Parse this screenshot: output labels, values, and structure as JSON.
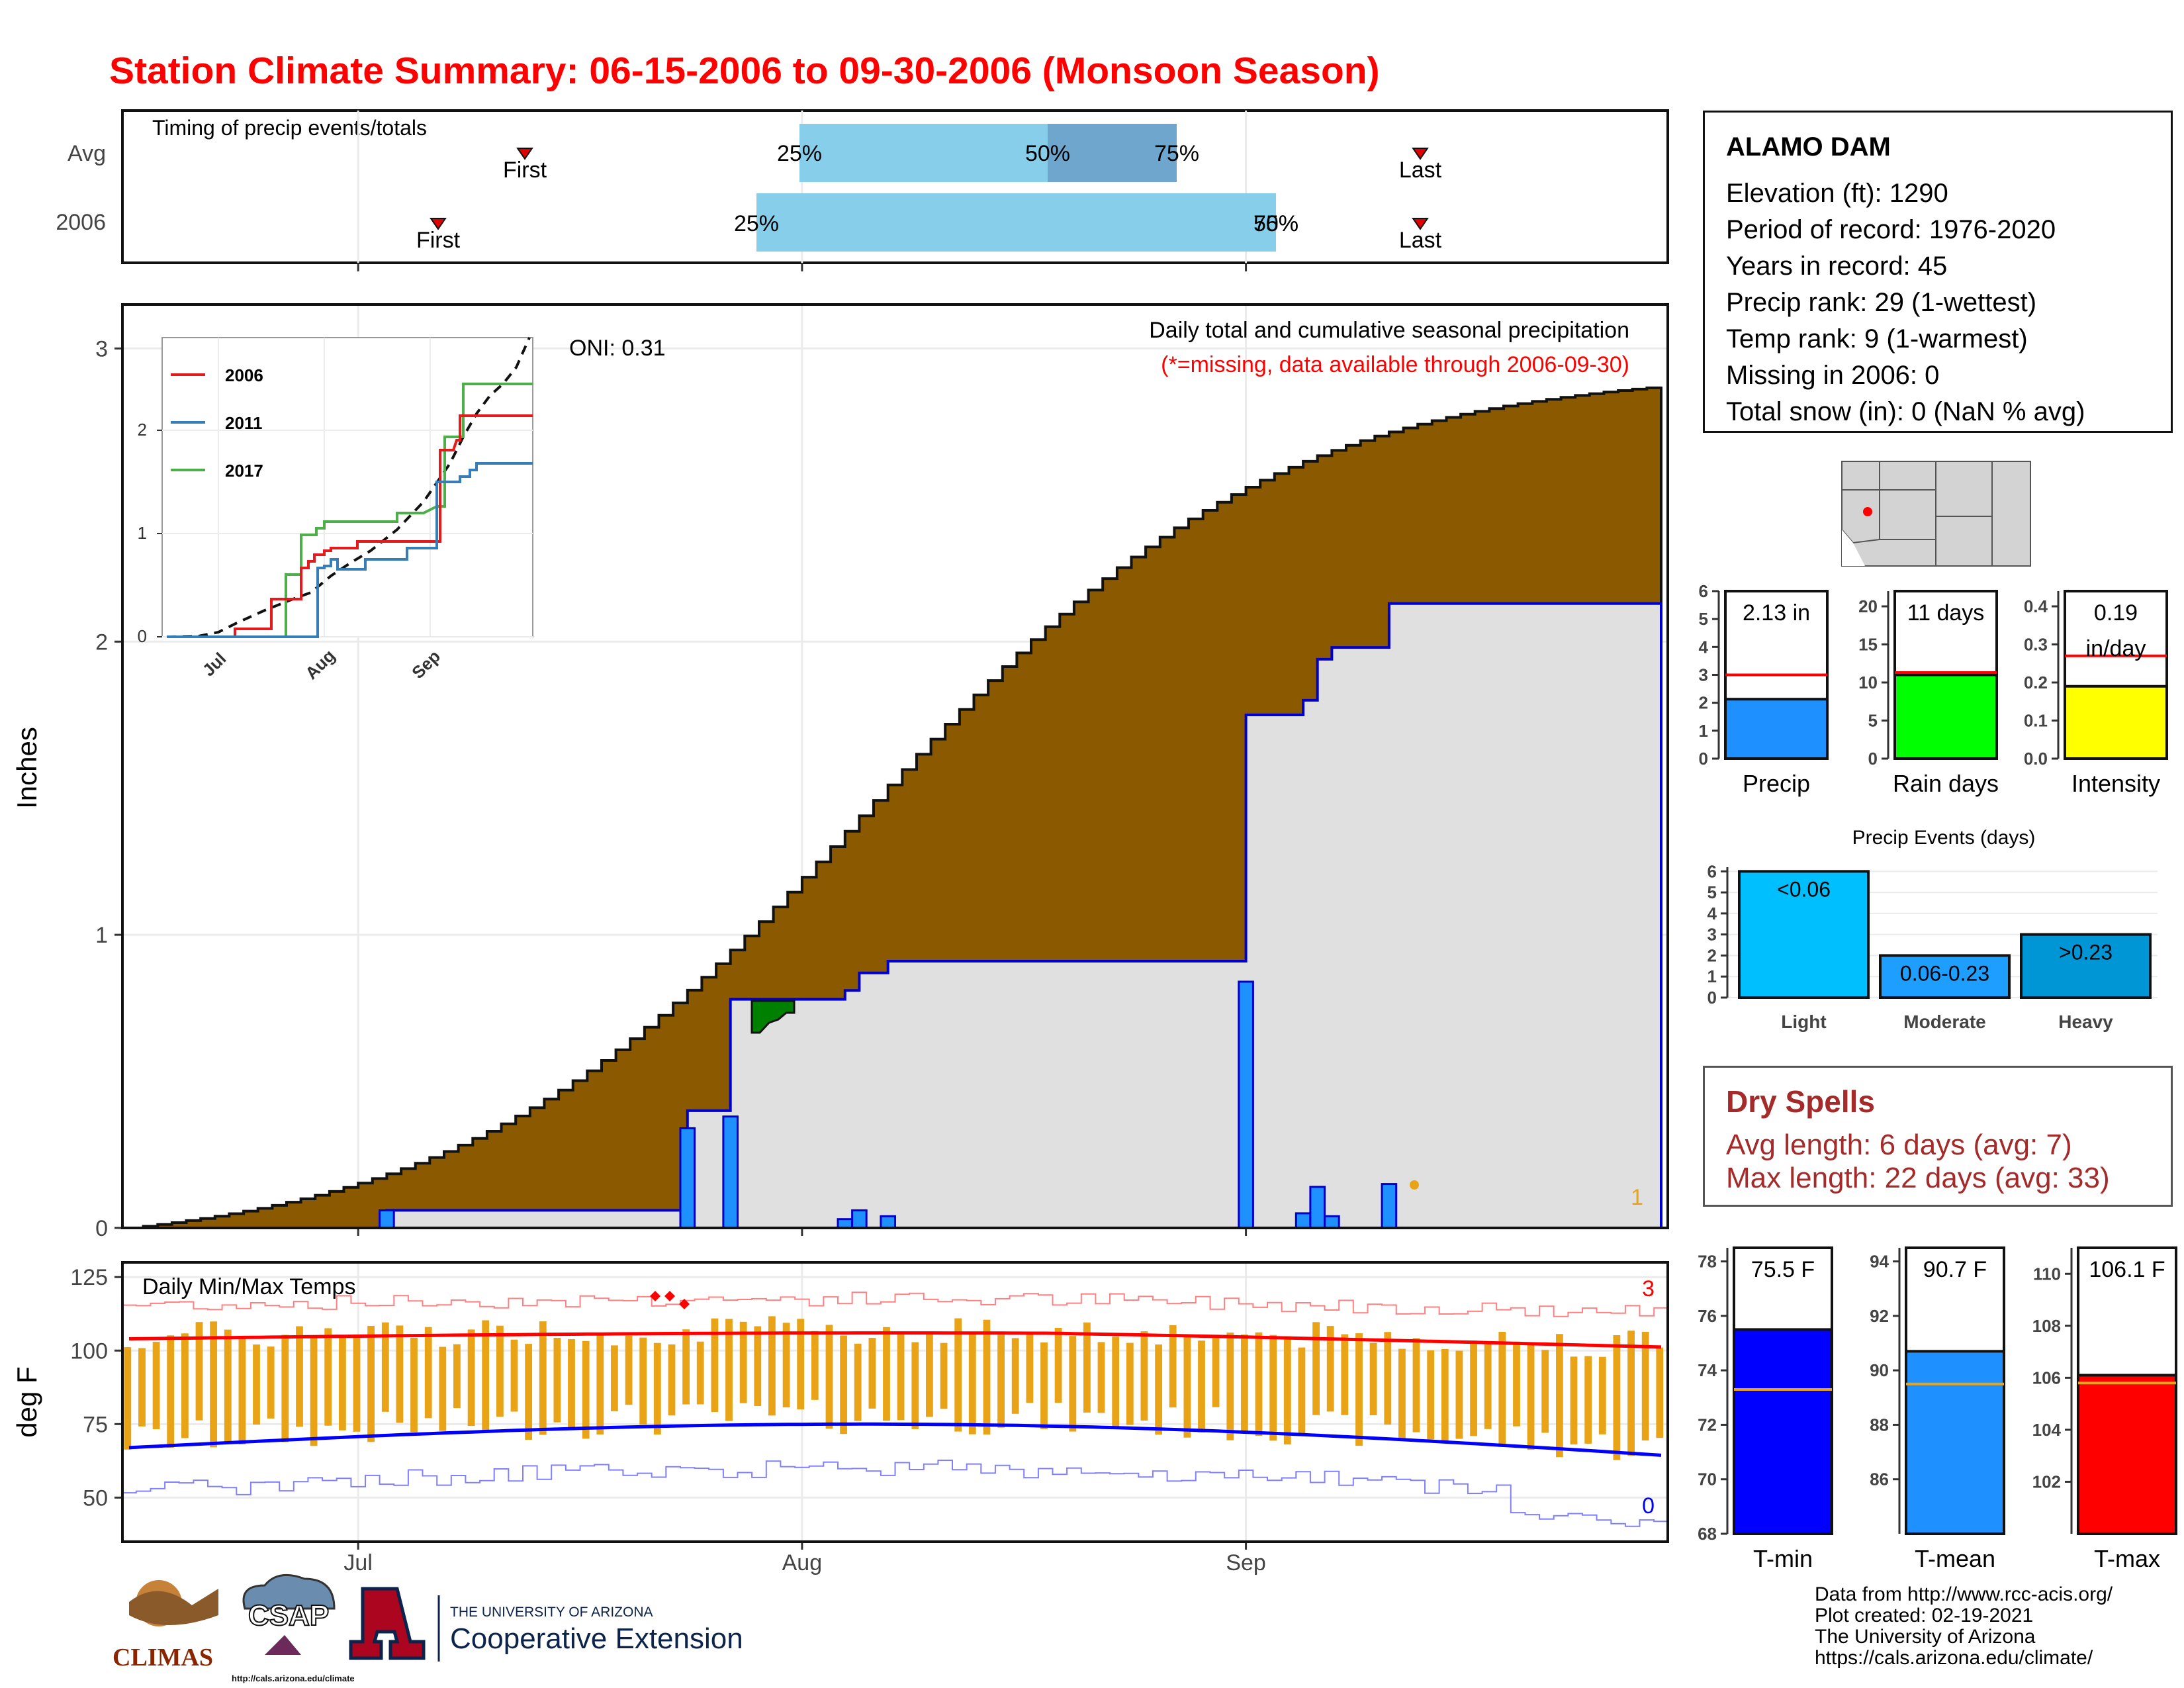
{
  "title": "Station Climate Summary: 06-15-2006 to 09-30-2006 (Monsoon Season)",
  "colors": {
    "title": "#ff0000",
    "cumulative_fill": "#8b5a00",
    "avg_fill": "#e0e0e0",
    "daily_bar": "#1e90ff",
    "outline": "#0000cd",
    "tmax": "#ff0000",
    "tmin": "#0000ff",
    "temp_bar": "#e8a317"
  },
  "timing": {
    "label": "Timing of precip events/totals",
    "rows": [
      "Avg",
      "2006"
    ],
    "first_label": "First",
    "last_label": "Last",
    "p25": "25%",
    "p50": "50%",
    "p75": "75%",
    "p2006_end": "50%",
    "p2006_end_over": "75%"
  },
  "main": {
    "ylabel": "Inches",
    "yticks": [
      "0",
      "1",
      "2",
      "3"
    ],
    "xticks": [
      "Jul",
      "Aug",
      "Sep"
    ],
    "oni": "ONI: 0.31",
    "caption": "Daily total and cumulative seasonal precipitation",
    "missing_note": "(*=missing, data available through 2006-09-30)",
    "corner_count": "1"
  },
  "inset": {
    "yticks": [
      "0",
      "1",
      "2"
    ],
    "xticks": [
      "Jul",
      "Aug",
      "Sep"
    ],
    "legend": [
      {
        "name": "2006",
        "color": "#e41a1c"
      },
      {
        "name": "2011",
        "color": "#377eb8"
      },
      {
        "name": "2017",
        "color": "#4daf4a"
      }
    ]
  },
  "temps": {
    "label": "Daily Min/Max Temps",
    "ylabel": "deg F",
    "yticks": [
      "50",
      "75",
      "100",
      "125"
    ],
    "xticks": [
      "Jul",
      "Aug",
      "Sep"
    ],
    "max_count": "3",
    "min_count": "0"
  },
  "station": {
    "name": "ALAMO DAM",
    "elevation": "Elevation (ft): 1290",
    "period": "Period of record: 1976-2020",
    "years": "Years in record: 45",
    "precip_rank": "Precip rank: 29 (1-wettest)",
    "temp_rank": "Temp rank: 9 (1-warmest)",
    "missing": "Missing in 2006: 0",
    "snow": "Total snow (in): 0 (NaN % avg)"
  },
  "summary_bars": [
    {
      "name": "Precip",
      "value_label": "2.13 in",
      "value_label2": "",
      "value": 2.13,
      "avg": 3.0,
      "ylim": [
        0,
        6
      ],
      "yticks": [
        "0",
        "1",
        "2",
        "3",
        "4",
        "5",
        "6"
      ],
      "color": "#1e90ff"
    },
    {
      "name": "Rain days",
      "value_label": "11 days",
      "value_label2": "",
      "value": 11,
      "avg": 11.3,
      "ylim": [
        0,
        22
      ],
      "yticks": [
        "0",
        "5",
        "10",
        "15",
        "20"
      ],
      "color": "#00ff00"
    },
    {
      "name": "Intensity",
      "value_label": "0.19",
      "value_label2": "in/day",
      "value": 0.19,
      "avg": 0.27,
      "ylim": [
        0,
        0.44
      ],
      "yticks": [
        "0.0",
        "0.1",
        "0.2",
        "0.3",
        "0.4"
      ],
      "color": "#ffff00"
    }
  ],
  "events": {
    "title": "Precip Events (days)",
    "yticks": [
      "0",
      "1",
      "2",
      "3",
      "4",
      "5",
      "6"
    ],
    "bars": [
      {
        "name": "Light",
        "label": "<0.06",
        "value": 6,
        "color": "#00bfff"
      },
      {
        "name": "Moderate",
        "label": "0.06-0.23",
        "value": 2,
        "color": "#1e9fff"
      },
      {
        "name": "Heavy",
        "label": ">0.23",
        "value": 3,
        "color": "#0096d6"
      }
    ]
  },
  "dry_spells": {
    "title": "Dry Spells",
    "avg": "Avg length: 6 days (avg: 7)",
    "max": "Max length: 22 days (avg: 33)"
  },
  "temp_bars": [
    {
      "name": "T-min",
      "value_label": "75.5 F",
      "value": 75.5,
      "avg": 73.3,
      "ylim": [
        68,
        78.5
      ],
      "yticks": [
        "68",
        "70",
        "72",
        "74",
        "76",
        "78"
      ],
      "color": "#0000ff"
    },
    {
      "name": "T-mean",
      "value_label": "90.7 F",
      "value": 90.7,
      "avg": 89.5,
      "ylim": [
        84,
        94.5
      ],
      "yticks": [
        "86",
        "88",
        "90",
        "92",
        "94"
      ],
      "color": "#1e90ff"
    },
    {
      "name": "T-max",
      "value_label": "106.1 F",
      "value": 106.1,
      "avg": 105.8,
      "ylim": [
        100,
        111
      ],
      "yticks": [
        "102",
        "104",
        "106",
        "108",
        "110"
      ],
      "color": "#ff0000"
    }
  ],
  "footer": {
    "line1": "Data from http://www.rcc-acis.org/",
    "line2": "Plot created: 02-19-2021",
    "line3": "The University of Arizona",
    "line4": "https://cals.arizona.edu/climate/"
  },
  "logos": {
    "climas": "CLIMAS",
    "csap": "CSAP",
    "csap_url": "http://cals.arizona.edu/climate",
    "ua_top": "THE UNIVERSITY OF ARIZONA",
    "ua_bottom": "Cooperative Extension"
  },
  "chart_data": [
    {
      "type": "area",
      "title": "Daily total and cumulative seasonal precipitation",
      "ylabel": "Inches",
      "ylim": [
        0,
        3.15
      ],
      "x_dates": [
        "2006-06-15",
        "2006-09-30"
      ],
      "cumulative_avg_start_end": [
        0.0,
        2.87
      ],
      "cumulative_2006_total": 2.13,
      "daily_2006": [
        {
          "date": "2006-07-03",
          "value": 0.06
        },
        {
          "date": "2006-07-24",
          "value": 0.34
        },
        {
          "date": "2006-07-27",
          "value": 0.38
        },
        {
          "date": "2006-08-04",
          "value": 0.03
        },
        {
          "date": "2006-08-05",
          "value": 0.06
        },
        {
          "date": "2006-08-07",
          "value": 0.04
        },
        {
          "date": "2006-09-01",
          "value": 0.84
        },
        {
          "date": "2006-09-05",
          "value": 0.05
        },
        {
          "date": "2006-09-06",
          "value": 0.14
        },
        {
          "date": "2006-09-07",
          "value": 0.04
        },
        {
          "date": "2006-09-11",
          "value": 0.15
        }
      ]
    },
    {
      "type": "line",
      "title": "Daily Min/Max Temps",
      "ylabel": "deg F",
      "ylim": [
        35,
        130
      ],
      "series": [
        {
          "name": "Tmax avg",
          "start": 104,
          "end": 98
        },
        {
          "name": "Tmin avg",
          "start": 67,
          "end": 62
        }
      ]
    }
  ]
}
